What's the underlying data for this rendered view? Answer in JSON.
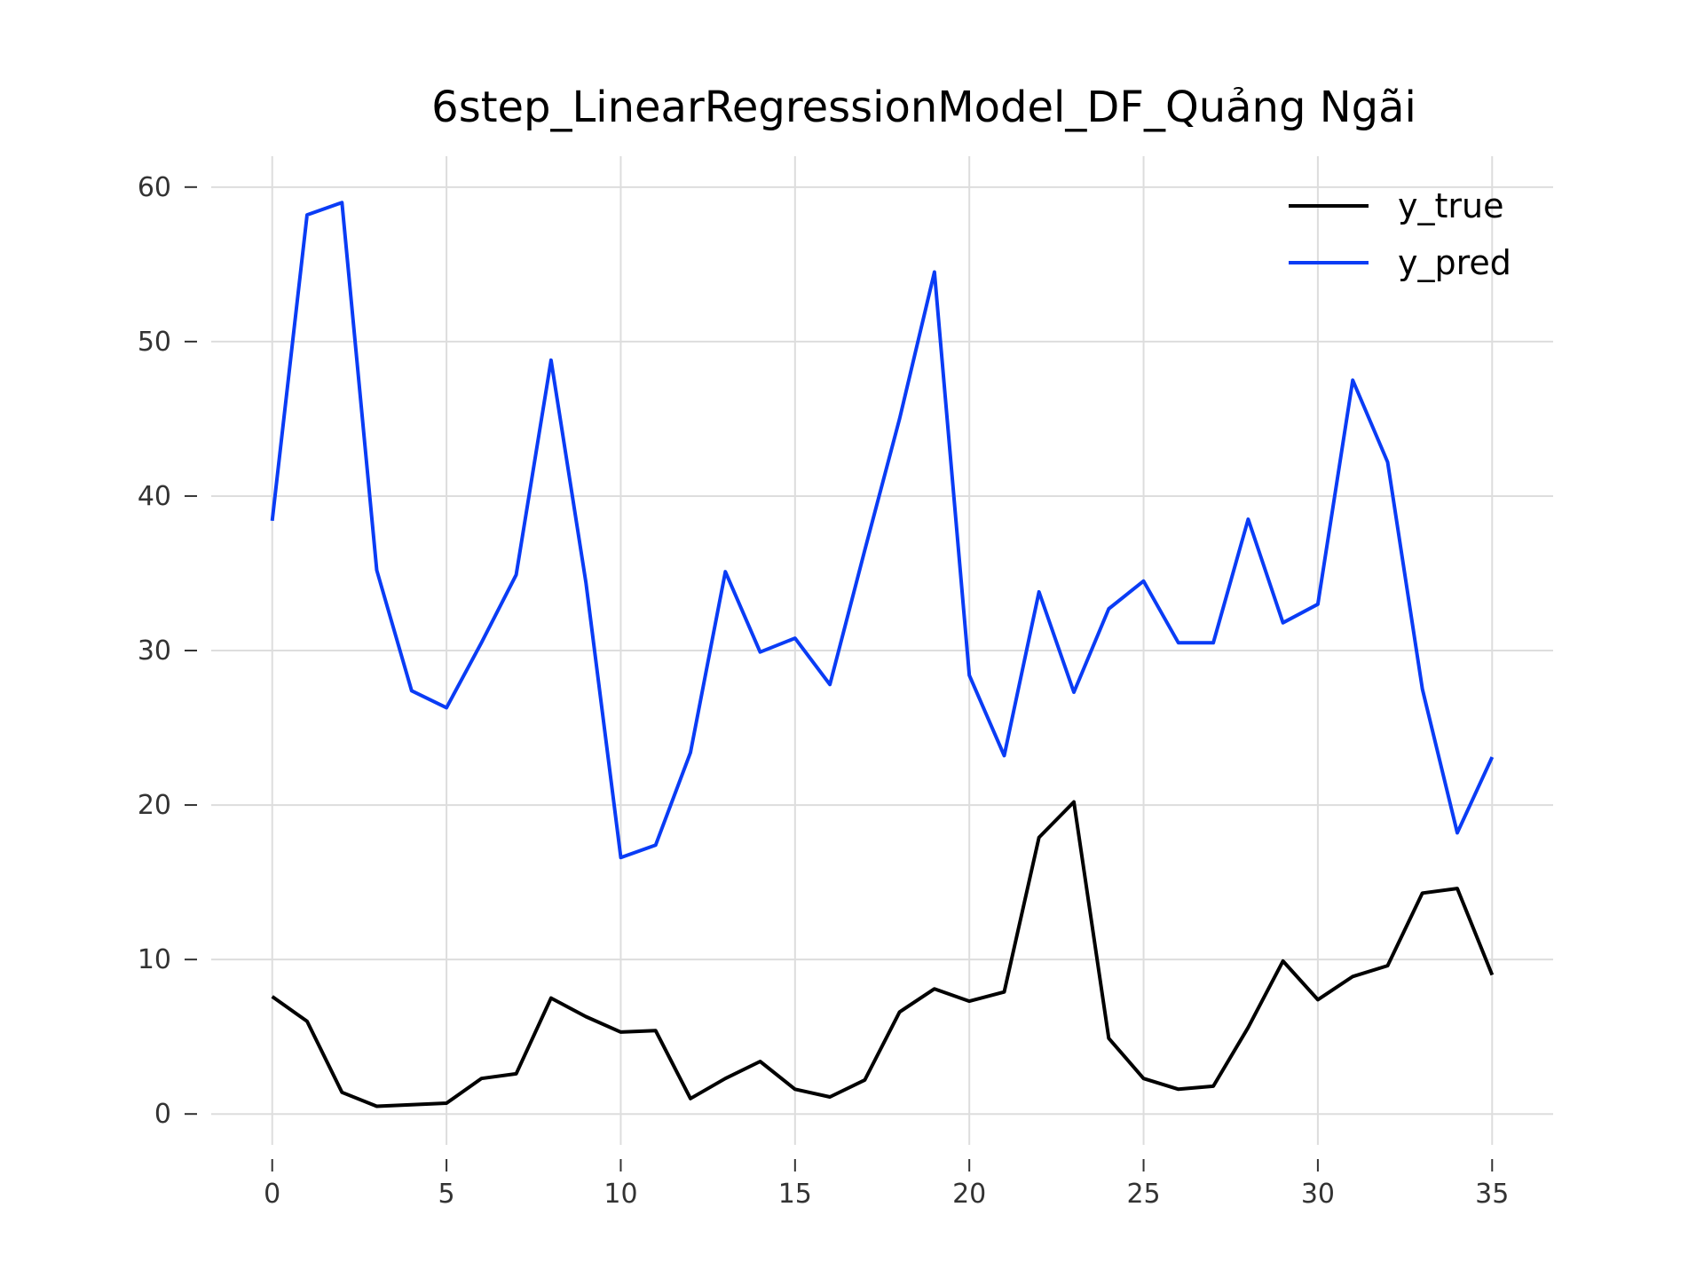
{
  "chart_data": {
    "type": "line",
    "title": "6step_LinearRegressionModel_DF_Quảng Ngãi",
    "xlabel": "",
    "ylabel": "",
    "xlim": [
      -1.75,
      36.75
    ],
    "ylim": [
      -2,
      62
    ],
    "xticks": [
      0,
      5,
      10,
      15,
      20,
      25,
      30,
      35
    ],
    "yticks": [
      0,
      10,
      20,
      30,
      40,
      50,
      60
    ],
    "grid": true,
    "legend_position": "top-right",
    "x": [
      0,
      1,
      2,
      3,
      4,
      5,
      6,
      7,
      8,
      9,
      10,
      11,
      12,
      13,
      14,
      15,
      16,
      17,
      18,
      19,
      20,
      21,
      22,
      23,
      24,
      25,
      26,
      27,
      28,
      29,
      30,
      31,
      32,
      33,
      34,
      35
    ],
    "series": [
      {
        "name": "y_true",
        "color": "#000000",
        "values": [
          7.6,
          6.0,
          1.4,
          0.5,
          0.6,
          0.7,
          2.3,
          2.6,
          7.5,
          6.3,
          5.3,
          5.4,
          1.0,
          2.3,
          3.4,
          1.6,
          1.1,
          2.2,
          6.6,
          8.1,
          7.3,
          7.9,
          17.9,
          20.2,
          4.9,
          2.3,
          1.6,
          1.8,
          5.6,
          9.9,
          7.4,
          8.9,
          9.6,
          14.3,
          14.6,
          9.0
        ]
      },
      {
        "name": "y_pred",
        "color": "#0a3cf5",
        "values": [
          38.4,
          58.2,
          59.0,
          35.2,
          27.4,
          26.3,
          30.5,
          34.9,
          48.8,
          34.4,
          16.6,
          17.4,
          23.4,
          35.1,
          29.9,
          30.8,
          27.8,
          36.5,
          45.0,
          54.5,
          28.4,
          23.2,
          33.8,
          27.3,
          32.7,
          34.5,
          30.5,
          30.5,
          38.5,
          31.8,
          33.0,
          47.5,
          42.2,
          27.5,
          18.2,
          23.1
        ]
      }
    ]
  }
}
